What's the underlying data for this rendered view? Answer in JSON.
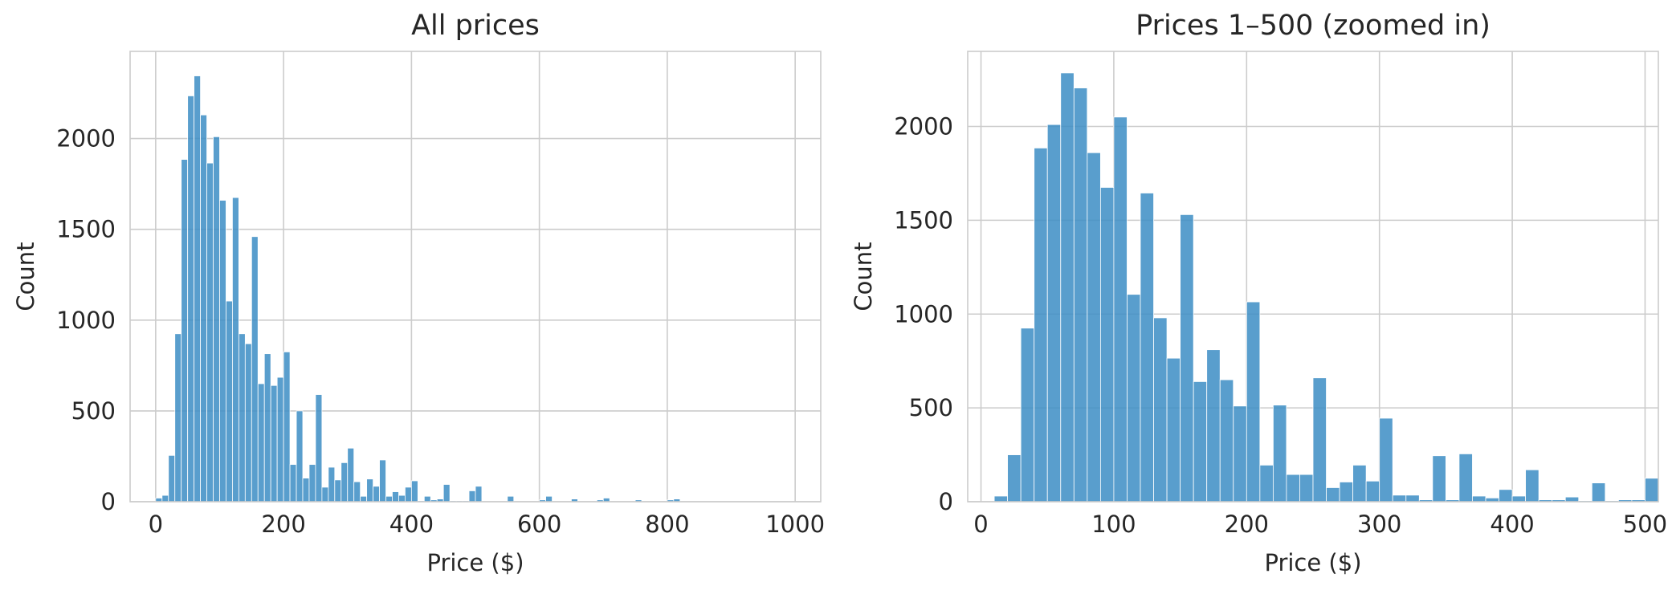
{
  "chart_data": [
    {
      "type": "bar",
      "title": "All prices",
      "xlabel": "Price ($)",
      "ylabel": "Count",
      "xlim": [
        -40,
        1040
      ],
      "ylim": [
        0,
        2480
      ],
      "xticks": [
        0,
        200,
        400,
        600,
        800,
        1000
      ],
      "yticks": [
        0,
        500,
        1000,
        1500,
        2000
      ],
      "grid": true,
      "bin_width": 10,
      "series": [
        {
          "x": [
            0,
            10,
            20,
            30,
            40,
            50,
            60,
            70,
            80,
            90,
            100,
            110,
            120,
            130,
            140,
            150,
            160,
            170,
            180,
            190,
            200,
            210,
            220,
            230,
            240,
            250,
            260,
            270,
            280,
            290,
            300,
            310,
            320,
            330,
            340,
            350,
            360,
            370,
            380,
            390,
            400,
            410,
            420,
            430,
            440,
            450,
            460,
            470,
            480,
            490,
            500,
            550,
            600,
            610,
            650,
            690,
            700,
            750,
            800,
            810
          ],
          "values": [
            20,
            35,
            255,
            925,
            1885,
            2235,
            2345,
            2130,
            1865,
            2010,
            1660,
            1105,
            1675,
            925,
            870,
            1460,
            650,
            815,
            640,
            685,
            825,
            205,
            500,
            130,
            205,
            590,
            80,
            190,
            120,
            215,
            295,
            110,
            30,
            125,
            85,
            230,
            30,
            55,
            35,
            80,
            115,
            5,
            30,
            10,
            15,
            95,
            5,
            5,
            5,
            60,
            85,
            30,
            10,
            30,
            15,
            10,
            20,
            10,
            10,
            15
          ]
        }
      ]
    },
    {
      "type": "bar",
      "title": "Prices 1–500 (zoomed in)",
      "xlabel": "Price ($)",
      "ylabel": "Count",
      "xlim": [
        -10,
        510
      ],
      "ylim": [
        0,
        2400
      ],
      "xticks": [
        0,
        100,
        200,
        300,
        400,
        500
      ],
      "yticks": [
        0,
        500,
        1000,
        1500,
        2000
      ],
      "grid": true,
      "bin_width": 10,
      "series": [
        {
          "x": [
            10,
            20,
            30,
            40,
            50,
            60,
            70,
            80,
            90,
            100,
            110,
            120,
            130,
            140,
            150,
            160,
            170,
            180,
            190,
            200,
            210,
            220,
            230,
            240,
            250,
            260,
            270,
            280,
            290,
            300,
            310,
            320,
            330,
            340,
            350,
            360,
            370,
            380,
            390,
            400,
            410,
            420,
            430,
            440,
            450,
            460,
            470,
            480,
            490,
            500
          ],
          "values": [
            30,
            250,
            925,
            1885,
            2010,
            2285,
            2205,
            1860,
            1675,
            2050,
            1105,
            1645,
            980,
            765,
            1530,
            640,
            810,
            650,
            510,
            1065,
            195,
            515,
            145,
            145,
            660,
            75,
            105,
            195,
            110,
            445,
            35,
            35,
            10,
            245,
            10,
            255,
            30,
            20,
            65,
            30,
            170,
            10,
            10,
            25,
            5,
            100,
            5,
            10,
            10,
            125
          ]
        }
      ]
    }
  ]
}
